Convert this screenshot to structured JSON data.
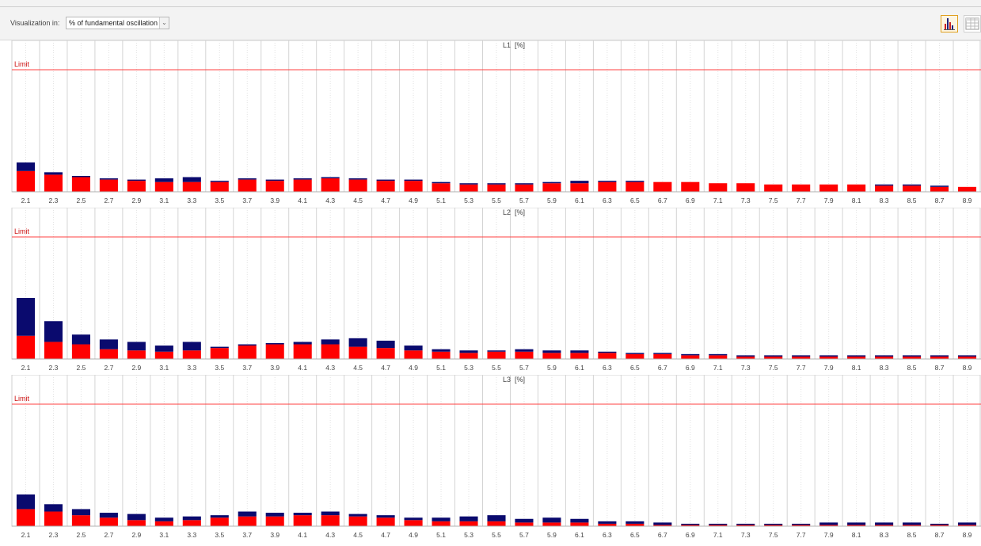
{
  "toolbar": {
    "visualization_label": "Visualization in:",
    "visualization_value": "% of fundamental oscillation",
    "chart_view_icon": "bar-chart-icon",
    "table_view_icon": "table-icon"
  },
  "colors": {
    "bar_base": "#ff0000",
    "bar_top": "#0a0a6e",
    "limit_line": "#ff4040",
    "active_button_border": "#e0a020"
  },
  "chart_data": [
    {
      "type": "bar",
      "title": "L1",
      "unit": "[%]",
      "limit_label": "Limit",
      "categories": [
        "2.1",
        "2.3",
        "2.5",
        "2.7",
        "2.9",
        "3.1",
        "3.3",
        "3.5",
        "3.7",
        "3.9",
        "4.1",
        "4.3",
        "4.5",
        "4.7",
        "4.9",
        "5.1",
        "5.3",
        "5.5",
        "5.7",
        "5.9",
        "6.1",
        "6.3",
        "6.5",
        "6.7",
        "6.9",
        "7.1",
        "7.3",
        "7.5",
        "7.7",
        "7.9",
        "8.1",
        "8.3",
        "8.5",
        "8.7",
        "8.9"
      ],
      "series": [
        {
          "values": [
            17,
            14,
            12,
            10,
            9,
            8,
            8,
            8,
            10,
            9,
            10,
            11,
            10,
            9,
            9,
            7,
            6,
            6,
            6,
            7,
            7,
            8,
            8,
            8,
            8,
            7,
            7,
            6,
            6,
            6,
            6,
            5,
            5,
            4,
            4
          ]
        },
        {
          "values": [
            7,
            2,
            1,
            1,
            1,
            3,
            4,
            1,
            1,
            1,
            1,
            1,
            1,
            1,
            1,
            1,
            1,
            1,
            1,
            1,
            2,
            1,
            1,
            0,
            0,
            0,
            0,
            0,
            0,
            0,
            0,
            1,
            1,
            1,
            0
          ]
        }
      ],
      "limit": 100
    },
    {
      "type": "bar",
      "title": "L2",
      "unit": "[%]",
      "limit_label": "Limit",
      "categories": [
        "2.1",
        "2.3",
        "2.5",
        "2.7",
        "2.9",
        "3.1",
        "3.3",
        "3.5",
        "3.7",
        "3.9",
        "4.1",
        "4.3",
        "4.5",
        "4.7",
        "4.9",
        "5.1",
        "5.3",
        "5.5",
        "5.7",
        "5.9",
        "6.1",
        "6.3",
        "6.5",
        "6.7",
        "6.9",
        "7.1",
        "7.3",
        "7.5",
        "7.7",
        "7.9",
        "8.1",
        "8.3",
        "8.5",
        "8.7",
        "8.9"
      ],
      "series": [
        {
          "values": [
            19,
            14,
            12,
            8,
            7,
            6,
            7,
            9,
            11,
            12,
            12,
            12,
            10,
            9,
            7,
            6,
            5,
            6,
            6,
            5,
            5,
            5,
            4,
            4,
            3,
            3,
            2,
            2,
            2,
            2,
            2,
            2,
            2,
            2,
            2
          ]
        },
        {
          "values": [
            31,
            17,
            8,
            8,
            7,
            5,
            7,
            1,
            1,
            1,
            2,
            4,
            7,
            6,
            4,
            2,
            2,
            1,
            2,
            2,
            2,
            1,
            1,
            1,
            1,
            1,
            1,
            1,
            1,
            1,
            1,
            1,
            1,
            1,
            1
          ]
        }
      ],
      "limit": 100
    },
    {
      "type": "bar",
      "title": "L3",
      "unit": "[%]",
      "limit_label": "Limit",
      "categories": [
        "2.1",
        "2.3",
        "2.5",
        "2.7",
        "2.9",
        "3.1",
        "3.3",
        "3.5",
        "3.7",
        "3.9",
        "4.1",
        "4.3",
        "4.5",
        "4.7",
        "4.9",
        "5.1",
        "5.3",
        "5.5",
        "5.7",
        "5.9",
        "6.1",
        "6.3",
        "6.5",
        "6.7",
        "6.9",
        "7.1",
        "7.3",
        "7.5",
        "7.7",
        "7.9",
        "8.1",
        "8.3",
        "8.5",
        "8.7",
        "8.9"
      ],
      "series": [
        {
          "values": [
            14,
            12,
            9,
            7,
            5,
            4,
            5,
            7,
            8,
            8,
            9,
            9,
            8,
            7,
            5,
            4,
            4,
            4,
            3,
            3,
            3,
            2,
            2,
            1,
            1,
            1,
            1,
            1,
            1,
            1,
            1,
            1,
            1,
            1,
            1
          ]
        },
        {
          "values": [
            12,
            6,
            5,
            4,
            5,
            3,
            3,
            2,
            4,
            3,
            2,
            3,
            2,
            2,
            2,
            3,
            4,
            5,
            3,
            4,
            3,
            2,
            2,
            2,
            1,
            1,
            1,
            1,
            1,
            2,
            2,
            2,
            2,
            1,
            2
          ]
        }
      ],
      "limit": 100
    }
  ]
}
